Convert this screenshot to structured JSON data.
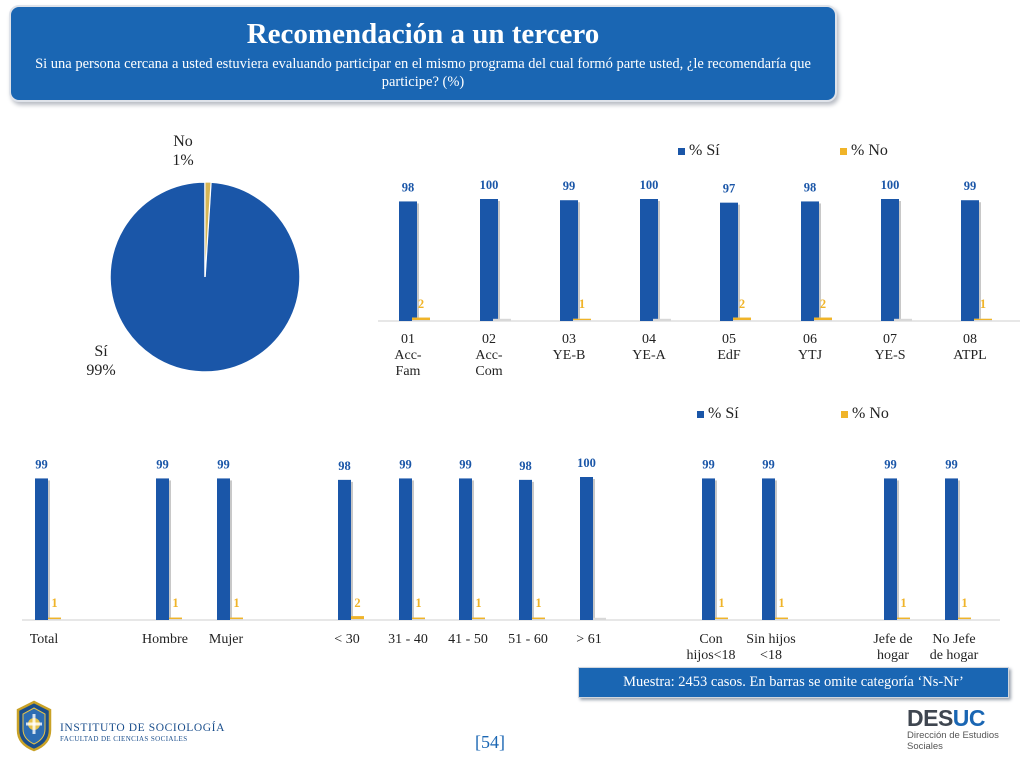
{
  "header": {
    "title": "Recomendación a un tercero",
    "subtitle": "Si una persona cercana a usted  estuviera evaluando participar en el mismo programa del cual formó parte usted, ¿le recomendaría que participe? (%)"
  },
  "colors": {
    "si": "#1a56a8",
    "no": "#f0b429",
    "header_bg": "#1a66b3"
  },
  "chart_data": [
    {
      "type": "pie",
      "slices": [
        {
          "label_lines": [
            "Sí",
            "99%"
          ],
          "value": 99,
          "color": "#1a56a8"
        },
        {
          "label_lines": [
            "No",
            "1%"
          ],
          "value": 1,
          "color": "#d6b656"
        }
      ]
    },
    {
      "type": "bar",
      "legend": {
        "position": "top",
        "entries": [
          "% Sí",
          "% No"
        ]
      },
      "categories": [
        [
          "01",
          "Acc-",
          "Fam"
        ],
        [
          "02",
          "Acc-",
          "Com"
        ],
        [
          "03",
          "YE-B"
        ],
        [
          "04",
          "YE-A"
        ],
        [
          "05",
          "EdF"
        ],
        [
          "06",
          "YTJ"
        ],
        [
          "07",
          "YE-S"
        ],
        [
          "08",
          "ATPL"
        ]
      ],
      "series": [
        {
          "name": "% Sí",
          "values": [
            98,
            100,
            99,
            100,
            97,
            98,
            100,
            99
          ]
        },
        {
          "name": "% No",
          "values": [
            2,
            null,
            1,
            null,
            2,
            2,
            null,
            1
          ]
        }
      ],
      "ylim": [
        0,
        100
      ]
    },
    {
      "type": "bar",
      "legend": {
        "position": "top",
        "entries": [
          "% Sí",
          "% No"
        ]
      },
      "categories": [
        [
          "Total"
        ],
        [
          "Hombre"
        ],
        [
          "Mujer"
        ],
        [
          "< 30"
        ],
        [
          "31 - 40"
        ],
        [
          "41 - 50"
        ],
        [
          "51 - 60"
        ],
        [
          "> 61"
        ],
        [
          "Con",
          "hijos<18"
        ],
        [
          "Sin hijos",
          "<18"
        ],
        [
          "Jefe de",
          "hogar"
        ],
        [
          "No Jefe",
          "de hogar"
        ]
      ],
      "series": [
        {
          "name": "% Sí",
          "values": [
            99,
            99,
            99,
            98,
            99,
            99,
            98,
            100,
            99,
            99,
            99,
            99
          ]
        },
        {
          "name": "% No",
          "values": [
            1,
            1,
            1,
            2,
            1,
            1,
            1,
            null,
            1,
            1,
            1,
            1
          ]
        }
      ],
      "ylim": [
        0,
        100
      ]
    }
  ],
  "note": "Muestra: 2453 casos. En barras se omite categoría ‘Ns-Nr’",
  "page_number": "[54]",
  "footer": {
    "institute_line1": "INSTITUTO DE SOCIOLOGÍA",
    "institute_line2": "FACULTAD DE CIENCIAS SOCIALES",
    "desuc_brand_a": "DES",
    "desuc_brand_b": "UC",
    "desuc_sub_lines": [
      "Dirección de Estudios",
      "Sociales"
    ]
  }
}
